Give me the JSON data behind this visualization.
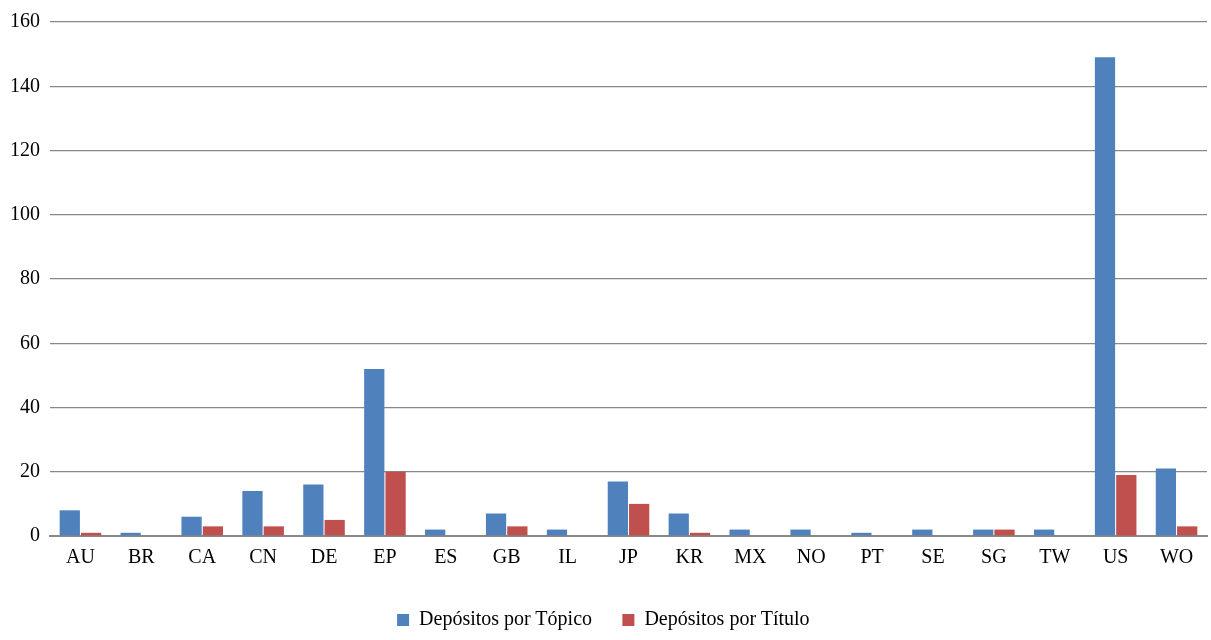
{
  "chart_data": {
    "type": "bar",
    "categories": [
      "AU",
      "BR",
      "CA",
      "CN",
      "DE",
      "EP",
      "ES",
      "GB",
      "IL",
      "JP",
      "KR",
      "MX",
      "NO",
      "PT",
      "SE",
      "SG",
      "TW",
      "US",
      "WO"
    ],
    "series": [
      {
        "name": "Depósitos por Tópico",
        "color": "#4f81bd",
        "values": [
          8,
          1,
          6,
          14,
          16,
          52,
          2,
          7,
          2,
          17,
          7,
          2,
          2,
          1,
          2,
          2,
          2,
          149,
          21
        ]
      },
      {
        "name": "Depósitos por Título",
        "color": "#c0504d",
        "values": [
          1,
          0,
          3,
          3,
          5,
          20,
          0,
          3,
          0,
          10,
          1,
          0,
          0,
          0,
          0,
          2,
          0,
          19,
          3
        ]
      }
    ],
    "ylim": [
      0,
      160
    ],
    "yticks": [
      0,
      20,
      40,
      60,
      80,
      100,
      120,
      140,
      160
    ],
    "grid": "y",
    "legend": "bottom"
  }
}
